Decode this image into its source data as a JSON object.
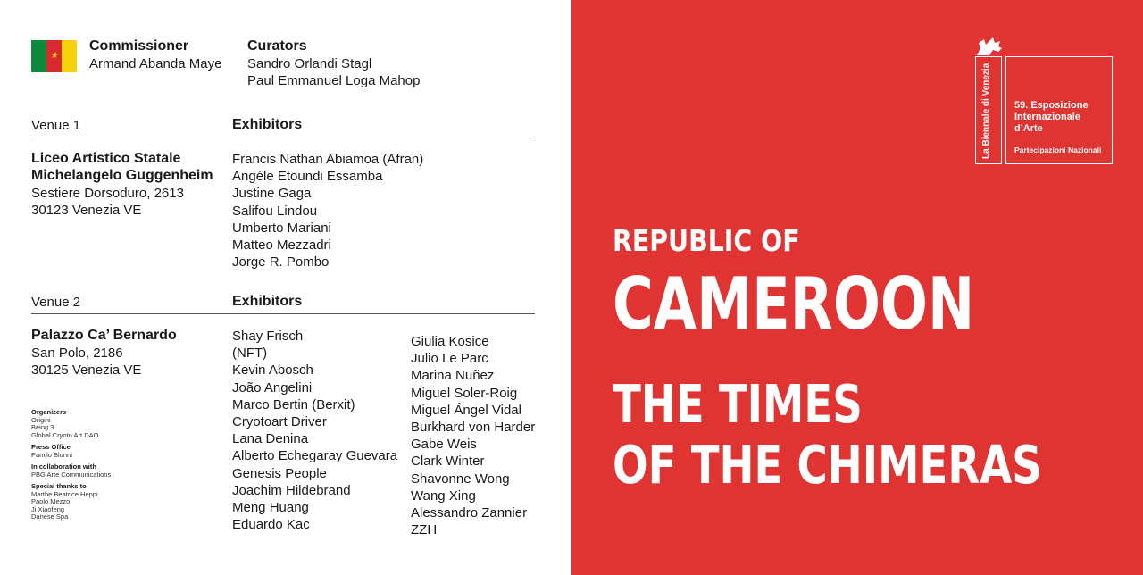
{
  "commissioner": {
    "label": "Commissioner",
    "name": "Armand Abanda Maye"
  },
  "curators": {
    "label": "Curators",
    "names": [
      "Sandro Orlandi Stagl",
      "Paul Emmanuel Loga Mahop"
    ]
  },
  "venue1": {
    "label": "Venue 1",
    "exhibitors_label": "Exhibitors",
    "name_lines": [
      "Liceo Artistico Statale",
      "Michelangelo Guggenheim"
    ],
    "address_lines": [
      "Sestiere Dorsoduro, 2613",
      "30123 Venezia VE"
    ],
    "exhibitors": [
      "Francis Nathan Abiamoa (Afran)",
      "Angéle Etoundi Essamba",
      "Justine Gaga",
      "Salifou Lindou",
      "Umberto Mariani",
      "Matteo Mezzadri",
      "Jorge R. Pombo"
    ]
  },
  "venue2": {
    "label": "Venue 2",
    "exhibitors_label": "Exhibitors",
    "name": "Palazzo Ca’ Bernardo",
    "address_lines": [
      "San Polo, 2186",
      "30125 Venezia VE"
    ],
    "exhibitors_col1": [
      "Shay Frisch",
      "(NFT)",
      "Kevin Abosch",
      "João Angelini",
      "Marco Bertin (Berxit)",
      "Cryotoart Driver",
      "Lana Denina",
      "Alberto Echegaray Guevara",
      "Genesis People",
      "Joachim Hildebrand",
      "Meng Huang",
      "Eduardo Kac"
    ],
    "exhibitors_col2": [
      "Giulia Kosice",
      "Julio Le Parc",
      "Marina Nuñez",
      "Miguel Soler-Roig",
      "Miguel Ángel Vidal",
      "Burkhard von Harder",
      "Gabe Weis",
      "Clark Winter",
      "Shavonne Wong",
      "Wang Xing",
      "Alessandro Zannier",
      "ZZH"
    ]
  },
  "credits": {
    "organizers_label": "Organizers",
    "organizers": [
      "Origini",
      "Being 3",
      "Global Cryoto Art DAO"
    ],
    "press_label": "Press Office",
    "press": [
      "Pamilo Blunni"
    ],
    "collab_label": "In collaboration with",
    "collab": [
      "PBG Arte Communications"
    ],
    "thanks_label": "Special thanks to",
    "thanks": [
      "Marthe Beatrice Heppi",
      "Paolo Mezzo",
      "Ji Xiaofeng",
      "Danese Spa"
    ]
  },
  "logo": {
    "vertical_text": "La Biennale di Venezia",
    "edition_lines": [
      "59. Esposizione",
      "Internazionale",
      "d’Arte"
    ],
    "sub": "Partecipazioni Nazionali"
  },
  "headline": {
    "line1": "REPUBLIC OF",
    "line2": "CAMEROON",
    "line3": "THE TIMES",
    "line4": "OF THE CHIMERAS"
  },
  "colors": {
    "background_right": "#e03433",
    "flag_green": "#0f8a3c",
    "flag_red": "#d8292f",
    "flag_yellow": "#f7d10c"
  }
}
